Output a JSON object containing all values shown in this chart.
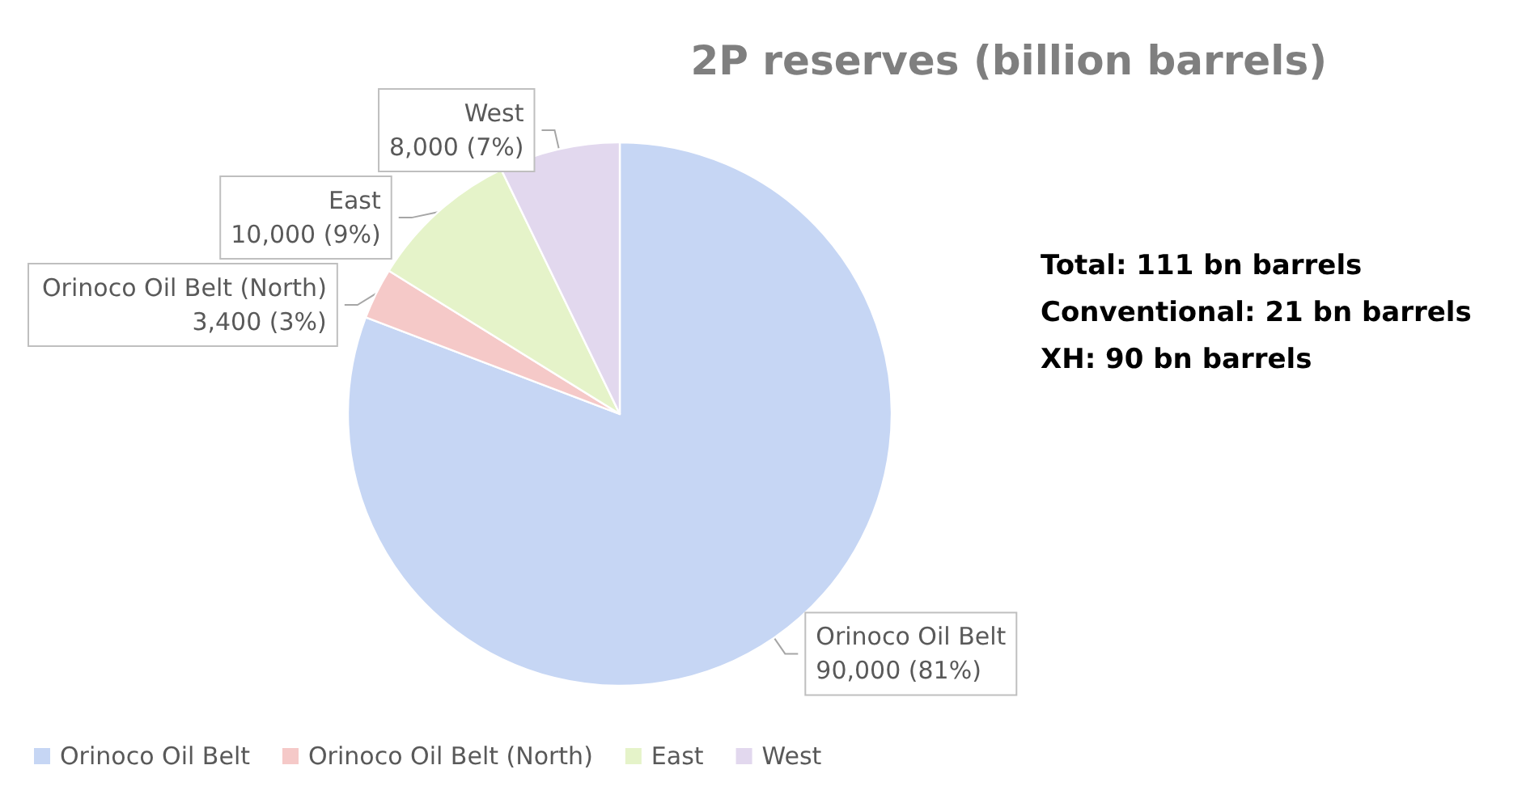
{
  "chart_data": {
    "type": "pie",
    "title": "2P reserves (billion barrels)",
    "categories": [
      "Orinoco Oil Belt",
      "Orinoco Oil Belt (North)",
      "East",
      "West"
    ],
    "values": [
      90000,
      3400,
      10000,
      8000
    ],
    "value_labels": [
      "90,000 (81%)",
      "3,400 (3%)",
      "10,000 (9%)",
      "8,000 (7%)"
    ],
    "colors": [
      "#c6d6f4",
      "#f5c9c8",
      "#e5f3c9",
      "#e2d8ee"
    ],
    "annotations": [
      "Total: 111 bn barrels",
      "Conventional: 21 bn barrels",
      "XH: 90 bn barrels"
    ],
    "legend": "bottom left"
  }
}
